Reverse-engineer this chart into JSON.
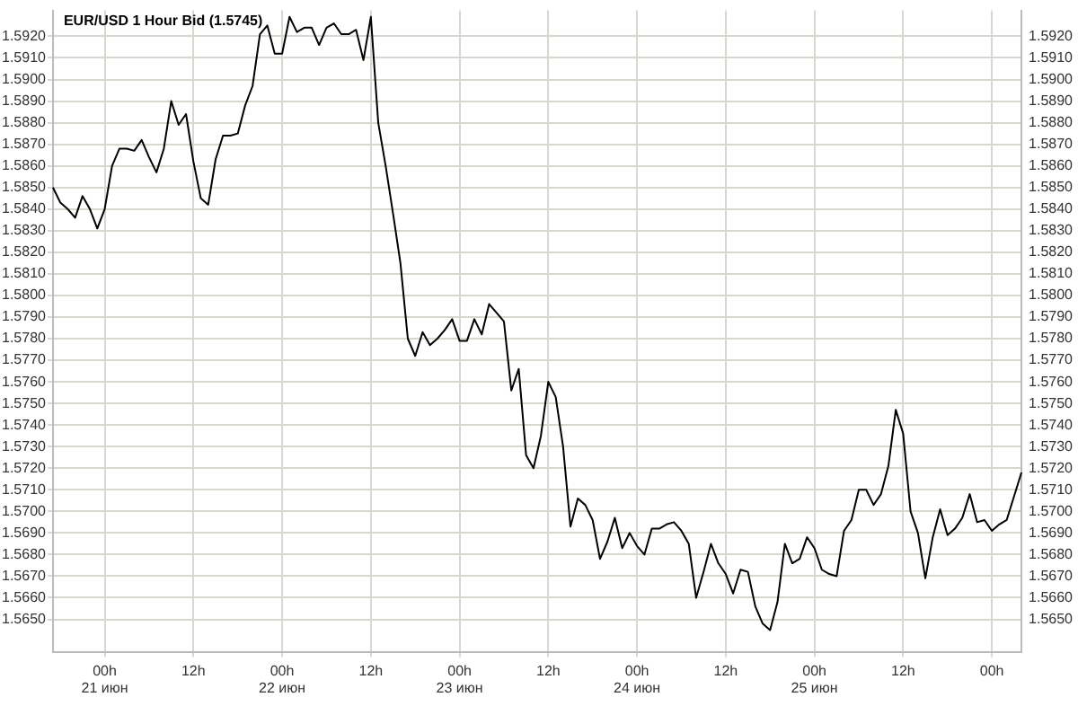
{
  "chart_data": {
    "type": "line",
    "title": "EUR/USD 1 Hour Bid (1.5745)",
    "categories": [
      null,
      null,
      null,
      null,
      null,
      null,
      null,
      "00h\n21 июн",
      null,
      null,
      null,
      null,
      null,
      null,
      null,
      null,
      null,
      null,
      null,
      "12h",
      null,
      null,
      null,
      null,
      null,
      null,
      null,
      null,
      null,
      null,
      null,
      "00h\n22 июн",
      null,
      null,
      null,
      null,
      null,
      null,
      null,
      null,
      null,
      null,
      null,
      "12h",
      null,
      null,
      null,
      null,
      null,
      null,
      null,
      null,
      null,
      null,
      null,
      "00h\n23 июн",
      null,
      null,
      null,
      null,
      null,
      null,
      null,
      null,
      null,
      null,
      null,
      "12h",
      null,
      null,
      null,
      null,
      null,
      null,
      null,
      null,
      null,
      null,
      null,
      "00h\n24 июн",
      null,
      null,
      null,
      null,
      null,
      null,
      null,
      null,
      null,
      null,
      null,
      "12h",
      null,
      null,
      null,
      null,
      null,
      null,
      null,
      null,
      null,
      null,
      null,
      "00h\n25 июн",
      null,
      null,
      null,
      null,
      null,
      null,
      null,
      null,
      null,
      null,
      null,
      "12h",
      null,
      null,
      null,
      null,
      null,
      null,
      null,
      null,
      null,
      null,
      null,
      "00h",
      null,
      null,
      null,
      null
    ],
    "series": [
      {
        "color": "#000000",
        "values": [
          1.585,
          1.5843,
          1.584,
          1.5836,
          1.5846,
          1.584,
          1.5831,
          1.584,
          1.586,
          1.5868,
          1.5868,
          1.5867,
          1.5872,
          1.5864,
          1.5857,
          1.5868,
          1.589,
          1.5879,
          1.5884,
          1.5862,
          1.5845,
          1.5842,
          1.5863,
          1.5874,
          1.5874,
          1.5875,
          1.5888,
          1.5897,
          1.5921,
          1.5925,
          1.5912,
          1.5912,
          1.5929,
          1.5922,
          1.5924,
          1.5924,
          1.5916,
          1.5924,
          1.5926,
          1.5921,
          1.5921,
          1.5923,
          1.5909,
          1.5929,
          1.588,
          1.586,
          1.5838,
          1.5815,
          1.578,
          1.5772,
          1.5783,
          1.5777,
          1.578,
          1.5784,
          1.5789,
          1.5779,
          1.5779,
          1.5789,
          1.5782,
          1.5796,
          1.5792,
          1.5788,
          1.5756,
          1.5766,
          1.5726,
          1.572,
          1.5735,
          1.576,
          1.5753,
          1.573,
          1.5693,
          1.5706,
          1.5703,
          1.5696,
          1.5678,
          1.5686,
          1.5697,
          1.5683,
          1.569,
          1.5684,
          1.568,
          1.5692,
          1.5692,
          1.5694,
          1.5695,
          1.5691,
          1.5685,
          1.566,
          1.5672,
          1.5685,
          1.5676,
          1.5671,
          1.5662,
          1.5673,
          1.5672,
          1.5656,
          1.5648,
          1.5645,
          1.5658,
          1.5685,
          1.5676,
          1.5678,
          1.5688,
          1.5683,
          1.5673,
          1.5671,
          1.567,
          1.5691,
          1.5696,
          1.571,
          1.571,
          1.5703,
          1.5708,
          1.5721,
          1.5747,
          1.5736,
          1.57,
          1.569,
          1.5669,
          1.5688,
          1.5701,
          1.5689,
          1.5692,
          1.5697,
          1.5708,
          1.5695,
          1.5696,
          1.5691,
          1.5694,
          1.5696,
          1.5707,
          1.5718
        ]
      }
    ],
    "ylim": [
      1.5635,
      1.5932
    ],
    "yticks": [
      {
        "value": 1.565,
        "label": "1.5650"
      },
      {
        "value": 1.566,
        "label": "1.5660"
      },
      {
        "value": 1.567,
        "label": "1.5670"
      },
      {
        "value": 1.568,
        "label": "1.5680"
      },
      {
        "value": 1.569,
        "label": "1.5690"
      },
      {
        "value": 1.57,
        "label": "1.5700"
      },
      {
        "value": 1.571,
        "label": "1.5710"
      },
      {
        "value": 1.572,
        "label": "1.5720"
      },
      {
        "value": 1.573,
        "label": "1.5730"
      },
      {
        "value": 1.574,
        "label": "1.5740"
      },
      {
        "value": 1.575,
        "label": "1.5750"
      },
      {
        "value": 1.576,
        "label": "1.5760"
      },
      {
        "value": 1.577,
        "label": "1.5770"
      },
      {
        "value": 1.578,
        "label": "1.5780"
      },
      {
        "value": 1.579,
        "label": "1.5790"
      },
      {
        "value": 1.58,
        "label": "1.5800"
      },
      {
        "value": 1.581,
        "label": "1.5810"
      },
      {
        "value": 1.582,
        "label": "1.5820"
      },
      {
        "value": 1.583,
        "label": "1.5830"
      },
      {
        "value": 1.584,
        "label": "1.5840"
      },
      {
        "value": 1.585,
        "label": "1.5850"
      },
      {
        "value": 1.586,
        "label": "1.5860"
      },
      {
        "value": 1.587,
        "label": "1.5870"
      },
      {
        "value": 1.588,
        "label": "1.5880"
      },
      {
        "value": 1.589,
        "label": "1.5890"
      },
      {
        "value": 1.59,
        "label": "1.5900"
      },
      {
        "value": 1.591,
        "label": "1.5910"
      },
      {
        "value": 1.592,
        "label": "1.5920"
      }
    ],
    "y2lim": [
      1.5635,
      1.5932
    ],
    "y2ticks": [
      {
        "value": 1.565,
        "label": "1.5650"
      },
      {
        "value": 1.566,
        "label": "1.5660"
      },
      {
        "value": 1.567,
        "label": "1.5670"
      },
      {
        "value": 1.568,
        "label": "1.5680"
      },
      {
        "value": 1.569,
        "label": "1.5690"
      },
      {
        "value": 1.57,
        "label": "1.5700"
      },
      {
        "value": 1.571,
        "label": "1.5710"
      },
      {
        "value": 1.572,
        "label": "1.5720"
      },
      {
        "value": 1.573,
        "label": "1.5730"
      },
      {
        "value": 1.574,
        "label": "1.5740"
      },
      {
        "value": 1.575,
        "label": "1.5750"
      },
      {
        "value": 1.576,
        "label": "1.5760"
      },
      {
        "value": 1.577,
        "label": "1.5770"
      },
      {
        "value": 1.578,
        "label": "1.5780"
      },
      {
        "value": 1.579,
        "label": "1.5790"
      },
      {
        "value": 1.58,
        "label": "1.5800"
      },
      {
        "value": 1.581,
        "label": "1.5810"
      },
      {
        "value": 1.582,
        "label": "1.5820"
      },
      {
        "value": 1.583,
        "label": "1.5830"
      },
      {
        "value": 1.584,
        "label": "1.5840"
      },
      {
        "value": 1.585,
        "label": "1.5850"
      },
      {
        "value": 1.586,
        "label": "1.5860"
      },
      {
        "value": 1.587,
        "label": "1.5870"
      },
      {
        "value": 1.588,
        "label": "1.5880"
      },
      {
        "value": 1.589,
        "label": "1.5890"
      },
      {
        "value": 1.59,
        "label": "1.5900"
      },
      {
        "value": 1.591,
        "label": "1.5910"
      },
      {
        "value": 1.592,
        "label": "1.5920"
      }
    ],
    "grid": true,
    "marker": "none",
    "line_style": "solid"
  }
}
